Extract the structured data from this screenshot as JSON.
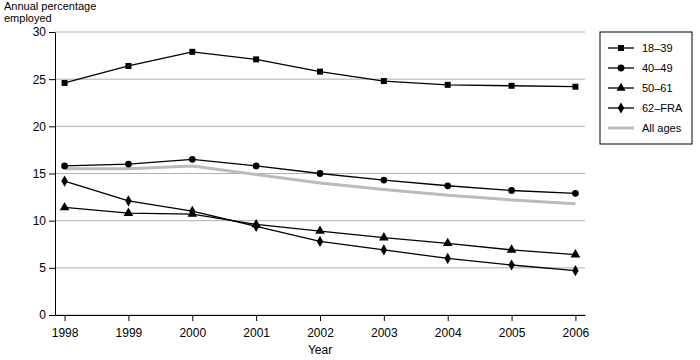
{
  "chart_data": {
    "type": "line",
    "y_label": "Annual percentage employed",
    "x_label": "Year",
    "categories": [
      "1998",
      "1999",
      "2000",
      "2001",
      "2002",
      "2003",
      "2004",
      "2005",
      "2006"
    ],
    "series": [
      {
        "name": "18–39",
        "color": "#000000",
        "marker": "square",
        "values": [
          24.6,
          26.4,
          27.9,
          27.1,
          25.8,
          24.8,
          24.4,
          24.3,
          24.2
        ]
      },
      {
        "name": "40–49",
        "color": "#000000",
        "marker": "circle",
        "values": [
          15.8,
          16.0,
          16.5,
          15.8,
          15.0,
          14.3,
          13.7,
          13.2,
          12.9
        ]
      },
      {
        "name": "50–61",
        "color": "#000000",
        "marker": "triangle",
        "values": [
          11.4,
          10.8,
          10.7,
          9.6,
          8.9,
          8.2,
          7.6,
          6.9,
          6.4
        ]
      },
      {
        "name": "62–FRA",
        "color": "#000000",
        "marker": "diamond",
        "values": [
          14.2,
          12.1,
          11.0,
          9.4,
          7.8,
          6.9,
          6.0,
          5.3,
          4.7
        ]
      },
      {
        "name": "All ages",
        "color": "#bbbbbb",
        "marker": "none",
        "values": [
          15.5,
          15.5,
          15.8,
          14.9,
          14.0,
          13.3,
          12.7,
          12.2,
          11.8
        ]
      }
    ],
    "ylim": [
      0,
      30
    ],
    "yticks": [
      0,
      5,
      10,
      15,
      20,
      25,
      30
    ],
    "grid": true,
    "legend": "top-right"
  }
}
